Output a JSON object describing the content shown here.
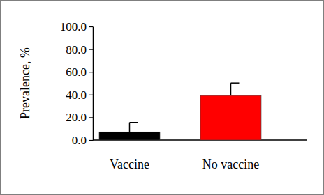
{
  "chart_data": {
    "type": "bar",
    "y_label": "Prevalence, %",
    "categories": [
      "Vaccine",
      "No vaccine"
    ],
    "values": [
      7.2,
      39.2
    ],
    "errors": [
      8.3,
      11.0
    ],
    "colors": [
      "#000000",
      "#ff0000"
    ],
    "ylim": [
      0,
      100
    ],
    "yticks": [
      {
        "value": 0,
        "label": "0.0"
      },
      {
        "value": 20,
        "label": "20.0"
      },
      {
        "value": 40,
        "label": "40.0"
      },
      {
        "value": 60,
        "label": "60.0"
      },
      {
        "value": 80,
        "label": "80.0"
      },
      {
        "value": 100,
        "label": "100.0"
      }
    ],
    "grid": false
  }
}
